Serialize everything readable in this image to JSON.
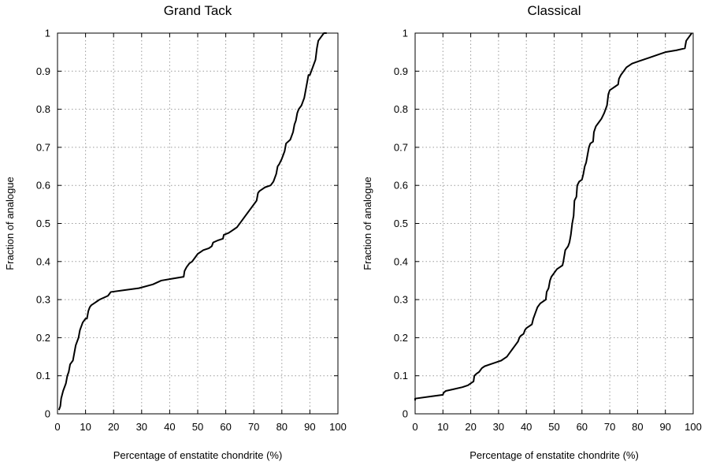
{
  "chart_data": [
    {
      "type": "line",
      "title": "Grand Tack",
      "xlabel": "Percentage of enstatite chondrite (%)",
      "ylabel": "Fraction of analogue",
      "xlim": [
        0,
        100
      ],
      "ylim": [
        0,
        1
      ],
      "xticks": [
        "0",
        "10",
        "20",
        "30",
        "40",
        "50",
        "60",
        "70",
        "80",
        "90",
        "100"
      ],
      "yticks": [
        "0",
        "0.1",
        "0.2",
        "0.3",
        "0.4",
        "0.5",
        "0.6",
        "0.7",
        "0.8",
        "0.9",
        "1"
      ],
      "grid": true,
      "series": [
        {
          "points": [
            [
              0.5,
              0.01
            ],
            [
              1,
              0.02
            ],
            [
              1.3,
              0.04
            ],
            [
              2,
              0.06
            ],
            [
              3,
              0.08
            ],
            [
              3.5,
              0.1
            ],
            [
              4,
              0.11
            ],
            [
              4.5,
              0.13
            ],
            [
              5.5,
              0.14
            ],
            [
              6,
              0.16
            ],
            [
              6.5,
              0.18
            ],
            [
              7,
              0.19
            ],
            [
              7.5,
              0.2
            ],
            [
              8,
              0.22
            ],
            [
              8.5,
              0.23
            ],
            [
              9,
              0.24
            ],
            [
              10,
              0.25
            ],
            [
              10.5,
              0.25
            ],
            [
              11,
              0.27
            ],
            [
              11.5,
              0.28
            ],
            [
              12,
              0.285
            ],
            [
              13,
              0.29
            ],
            [
              14,
              0.295
            ],
            [
              15,
              0.3
            ],
            [
              18,
              0.31
            ],
            [
              18.5,
              0.315
            ],
            [
              19,
              0.32
            ],
            [
              24,
              0.325
            ],
            [
              29,
              0.33
            ],
            [
              34,
              0.34
            ],
            [
              37,
              0.35
            ],
            [
              41,
              0.355
            ],
            [
              45,
              0.36
            ],
            [
              45.3,
              0.375
            ],
            [
              46,
              0.385
            ],
            [
              47,
              0.395
            ],
            [
              48,
              0.4
            ],
            [
              49,
              0.41
            ],
            [
              50,
              0.42
            ],
            [
              52,
              0.43
            ],
            [
              54,
              0.435
            ],
            [
              55,
              0.44
            ],
            [
              55.5,
              0.45
            ],
            [
              57,
              0.455
            ],
            [
              59,
              0.46
            ],
            [
              59.3,
              0.47
            ],
            [
              61,
              0.475
            ],
            [
              62,
              0.48
            ],
            [
              63,
              0.485
            ],
            [
              64,
              0.49
            ],
            [
              66,
              0.51
            ],
            [
              67,
              0.52
            ],
            [
              68,
              0.53
            ],
            [
              69,
              0.54
            ],
            [
              70,
              0.55
            ],
            [
              71,
              0.56
            ],
            [
              71.5,
              0.58
            ],
            [
              72,
              0.585
            ],
            [
              73,
              0.59
            ],
            [
              74,
              0.595
            ],
            [
              76,
              0.6
            ],
            [
              77,
              0.61
            ],
            [
              78,
              0.63
            ],
            [
              78.5,
              0.65
            ],
            [
              79,
              0.655
            ],
            [
              80,
              0.67
            ],
            [
              81,
              0.69
            ],
            [
              81.5,
              0.71
            ],
            [
              83,
              0.72
            ],
            [
              84,
              0.74
            ],
            [
              84.5,
              0.76
            ],
            [
              85,
              0.77
            ],
            [
              85.5,
              0.79
            ],
            [
              86,
              0.8
            ],
            [
              87,
              0.81
            ],
            [
              88,
              0.83
            ],
            [
              88.5,
              0.85
            ],
            [
              89,
              0.87
            ],
            [
              89.5,
              0.89
            ],
            [
              90,
              0.89
            ],
            [
              90.5,
              0.9
            ],
            [
              91,
              0.91
            ],
            [
              91.5,
              0.92
            ],
            [
              92,
              0.93
            ],
            [
              92.5,
              0.96
            ],
            [
              93,
              0.98
            ],
            [
              94,
              0.99
            ],
            [
              95,
              1.0
            ],
            [
              96,
              1.0
            ]
          ]
        }
      ]
    },
    {
      "type": "line",
      "title": "Classical",
      "xlabel": "Percentage of enstatite chondrite (%)",
      "ylabel": "Fraction of analogue",
      "xlim": [
        0,
        100
      ],
      "ylim": [
        0,
        1
      ],
      "xticks": [
        "0",
        "10",
        "20",
        "30",
        "40",
        "50",
        "60",
        "70",
        "80",
        "90",
        "100"
      ],
      "yticks": [
        "0",
        "0.1",
        "0.2",
        "0.3",
        "0.4",
        "0.5",
        "0.6",
        "0.7",
        "0.8",
        "0.9",
        "1"
      ],
      "grid": true,
      "series": [
        {
          "points": [
            [
              0,
              0.035
            ],
            [
              0,
              0.04
            ],
            [
              5,
              0.045
            ],
            [
              10,
              0.05
            ],
            [
              10.2,
              0.055
            ],
            [
              11,
              0.06
            ],
            [
              14,
              0.065
            ],
            [
              17,
              0.07
            ],
            [
              19,
              0.075
            ],
            [
              20,
              0.08
            ],
            [
              21,
              0.085
            ],
            [
              21.3,
              0.1
            ],
            [
              22,
              0.105
            ],
            [
              23,
              0.11
            ],
            [
              24,
              0.12
            ],
            [
              25,
              0.125
            ],
            [
              27,
              0.13
            ],
            [
              29,
              0.135
            ],
            [
              31,
              0.14
            ],
            [
              32,
              0.145
            ],
            [
              33,
              0.15
            ],
            [
              34,
              0.16
            ],
            [
              35,
              0.17
            ],
            [
              36,
              0.18
            ],
            [
              37,
              0.19
            ],
            [
              37.5,
              0.2
            ],
            [
              38,
              0.205
            ],
            [
              39,
              0.21
            ],
            [
              39.5,
              0.22
            ],
            [
              40,
              0.225
            ],
            [
              41,
              0.23
            ],
            [
              42,
              0.235
            ],
            [
              42.5,
              0.25
            ],
            [
              43,
              0.26
            ],
            [
              43.5,
              0.27
            ],
            [
              44,
              0.28
            ],
            [
              45,
              0.29
            ],
            [
              47,
              0.3
            ],
            [
              47.3,
              0.32
            ],
            [
              48,
              0.33
            ],
            [
              48.5,
              0.35
            ],
            [
              49,
              0.36
            ],
            [
              50,
              0.37
            ],
            [
              51,
              0.38
            ],
            [
              52,
              0.385
            ],
            [
              53,
              0.39
            ],
            [
              53.3,
              0.4
            ],
            [
              54,
              0.43
            ],
            [
              55,
              0.44
            ],
            [
              55.5,
              0.45
            ],
            [
              56,
              0.47
            ],
            [
              56.5,
              0.5
            ],
            [
              57,
              0.52
            ],
            [
              57.3,
              0.56
            ],
            [
              58,
              0.57
            ],
            [
              58.3,
              0.6
            ],
            [
              59,
              0.61
            ],
            [
              60,
              0.615
            ],
            [
              60.5,
              0.63
            ],
            [
              61,
              0.65
            ],
            [
              61.5,
              0.66
            ],
            [
              62,
              0.68
            ],
            [
              62.5,
              0.7
            ],
            [
              63,
              0.71
            ],
            [
              64,
              0.715
            ],
            [
              64.3,
              0.74
            ],
            [
              65,
              0.755
            ],
            [
              66,
              0.765
            ],
            [
              67,
              0.775
            ],
            [
              68,
              0.79
            ],
            [
              69,
              0.81
            ],
            [
              69.5,
              0.84
            ],
            [
              70,
              0.85
            ],
            [
              71,
              0.855
            ],
            [
              72,
              0.86
            ],
            [
              73,
              0.865
            ],
            [
              73.3,
              0.88
            ],
            [
              74,
              0.89
            ],
            [
              75,
              0.9
            ],
            [
              76,
              0.91
            ],
            [
              77,
              0.915
            ],
            [
              78,
              0.92
            ],
            [
              80,
              0.925
            ],
            [
              84,
              0.935
            ],
            [
              88,
              0.945
            ],
            [
              90,
              0.95
            ],
            [
              94,
              0.955
            ],
            [
              97,
              0.96
            ],
            [
              97.5,
              0.98
            ],
            [
              98.5,
              0.99
            ],
            [
              99.5,
              1.0
            ]
          ]
        }
      ]
    }
  ]
}
